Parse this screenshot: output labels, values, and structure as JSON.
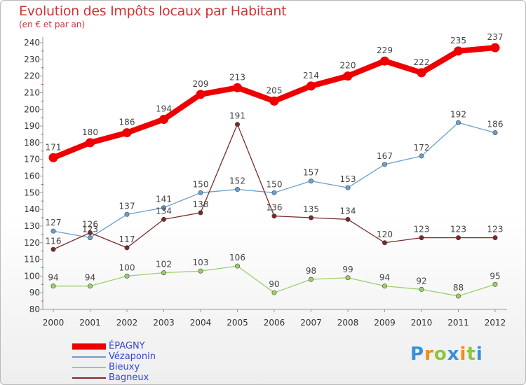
{
  "title": "Evolution des Impôts locaux par Habitant",
  "subtitle": "(en € et par an)",
  "logo": {
    "text": "Proxiti",
    "colors": [
      "#3a8fd9",
      "#f08a1c",
      "#8cc63f"
    ]
  },
  "chart_data": {
    "type": "line",
    "x": [
      "2000",
      "2001",
      "2002",
      "2003",
      "2004",
      "2005",
      "2006",
      "2007",
      "2008",
      "2009",
      "2010",
      "2011",
      "2012"
    ],
    "ylim": [
      80,
      240
    ],
    "yticks": [
      80,
      90,
      100,
      110,
      120,
      130,
      140,
      150,
      160,
      170,
      180,
      190,
      200,
      210,
      220,
      230,
      240
    ],
    "grid": false,
    "legend_position": "bottom-left",
    "series": [
      {
        "name": "ÉPAGNY",
        "color": "#ee0000",
        "width": "thick",
        "values": [
          171,
          180,
          186,
          194,
          209,
          213,
          205,
          214,
          220,
          229,
          222,
          235,
          237
        ]
      },
      {
        "name": "Vézaponin",
        "color": "#6b9fcc",
        "width": "thin",
        "values": [
          127,
          123,
          137,
          141,
          150,
          152,
          150,
          157,
          153,
          167,
          172,
          192,
          186
        ]
      },
      {
        "name": "Bieuxy",
        "color": "#9ad16a",
        "width": "thin",
        "values": [
          94,
          94,
          100,
          102,
          103,
          106,
          90,
          98,
          99,
          94,
          92,
          88,
          95
        ]
      },
      {
        "name": "Bagneux",
        "color": "#7a2a2a",
        "width": "thin",
        "values": [
          116,
          126,
          117,
          134,
          138,
          191,
          136,
          135,
          134,
          120,
          123,
          123,
          123
        ]
      }
    ]
  }
}
